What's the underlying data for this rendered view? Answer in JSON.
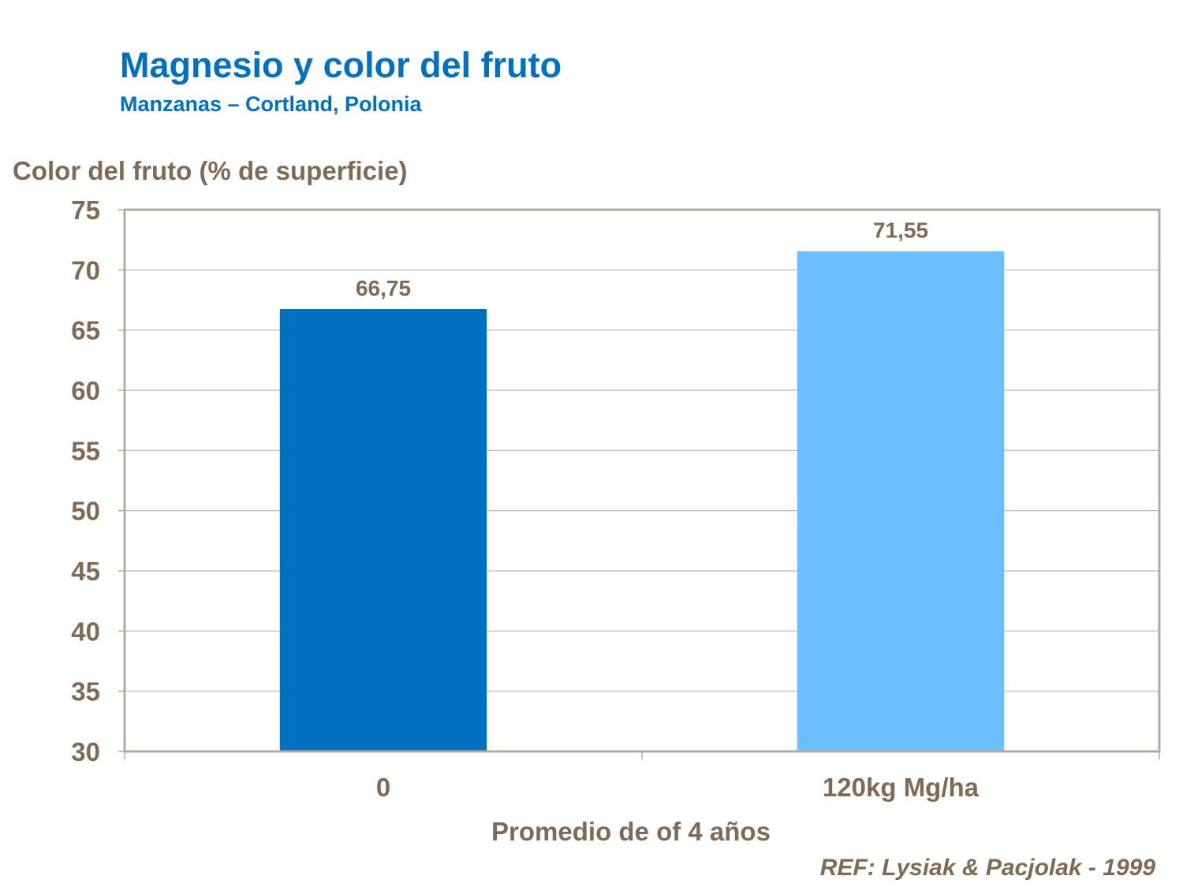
{
  "chart_data": {
    "type": "bar",
    "title": "Magnesio y color del fruto",
    "subtitle": "Manzanas – Cortland, Polonia",
    "ylabel": "Color del fruto (% de superficie)",
    "xlabel": "Promedio de of 4 años",
    "categories": [
      "0",
      "120kg Mg/ha"
    ],
    "values": [
      66.75,
      71.55
    ],
    "data_labels": [
      "66,75",
      "71,55"
    ],
    "bar_colors": [
      "#0070C0",
      "#6BBEFF"
    ],
    "ylim": [
      30,
      75
    ],
    "yticks": [
      30,
      35,
      40,
      45,
      50,
      55,
      60,
      65,
      70,
      75
    ],
    "grid": true,
    "legend": "none",
    "reference": "REF: Lysiak & Pacjolak - 1999",
    "colors": {
      "title": "#0070C0",
      "text": "#7F6A55",
      "grid": "#BDB6AE",
      "frame": "#B3ABA2"
    }
  }
}
